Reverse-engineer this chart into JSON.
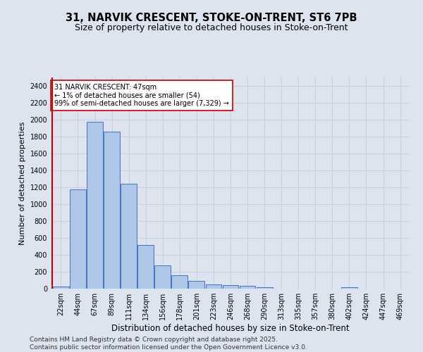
{
  "title_line1": "31, NARVIK CRESCENT, STOKE-ON-TRENT, ST6 7PB",
  "title_line2": "Size of property relative to detached houses in Stoke-on-Trent",
  "xlabel": "Distribution of detached houses by size in Stoke-on-Trent",
  "ylabel": "Number of detached properties",
  "categories": [
    "22sqm",
    "44sqm",
    "67sqm",
    "89sqm",
    "111sqm",
    "134sqm",
    "156sqm",
    "178sqm",
    "201sqm",
    "223sqm",
    "246sqm",
    "268sqm",
    "290sqm",
    "313sqm",
    "335sqm",
    "357sqm",
    "380sqm",
    "402sqm",
    "424sqm",
    "447sqm",
    "469sqm"
  ],
  "values": [
    25,
    1175,
    1975,
    1855,
    1240,
    515,
    275,
    155,
    90,
    50,
    42,
    35,
    20,
    0,
    0,
    0,
    0,
    15,
    0,
    0,
    0
  ],
  "bar_color": "#aec6e8",
  "bar_edge_color": "#4472c4",
  "vline_color": "#cc0000",
  "annotation_text": "31 NARVIK CRESCENT: 47sqm\n← 1% of detached houses are smaller (54)\n99% of semi-detached houses are larger (7,329) →",
  "annotation_box_color": "#ffffff",
  "annotation_box_edge_color": "#cc0000",
  "ylim": [
    0,
    2500
  ],
  "yticks": [
    0,
    200,
    400,
    600,
    800,
    1000,
    1200,
    1400,
    1600,
    1800,
    2000,
    2200,
    2400
  ],
  "grid_color": "#c8d0dc",
  "bg_color": "#dde4f0",
  "footer_line1": "Contains HM Land Registry data © Crown copyright and database right 2025.",
  "footer_line2": "Contains public sector information licensed under the Open Government Licence v3.0.",
  "title_fontsize": 10.5,
  "subtitle_fontsize": 9,
  "xlabel_fontsize": 8.5,
  "ylabel_fontsize": 8,
  "tick_fontsize": 7,
  "annotation_fontsize": 7,
  "footer_fontsize": 6.5
}
